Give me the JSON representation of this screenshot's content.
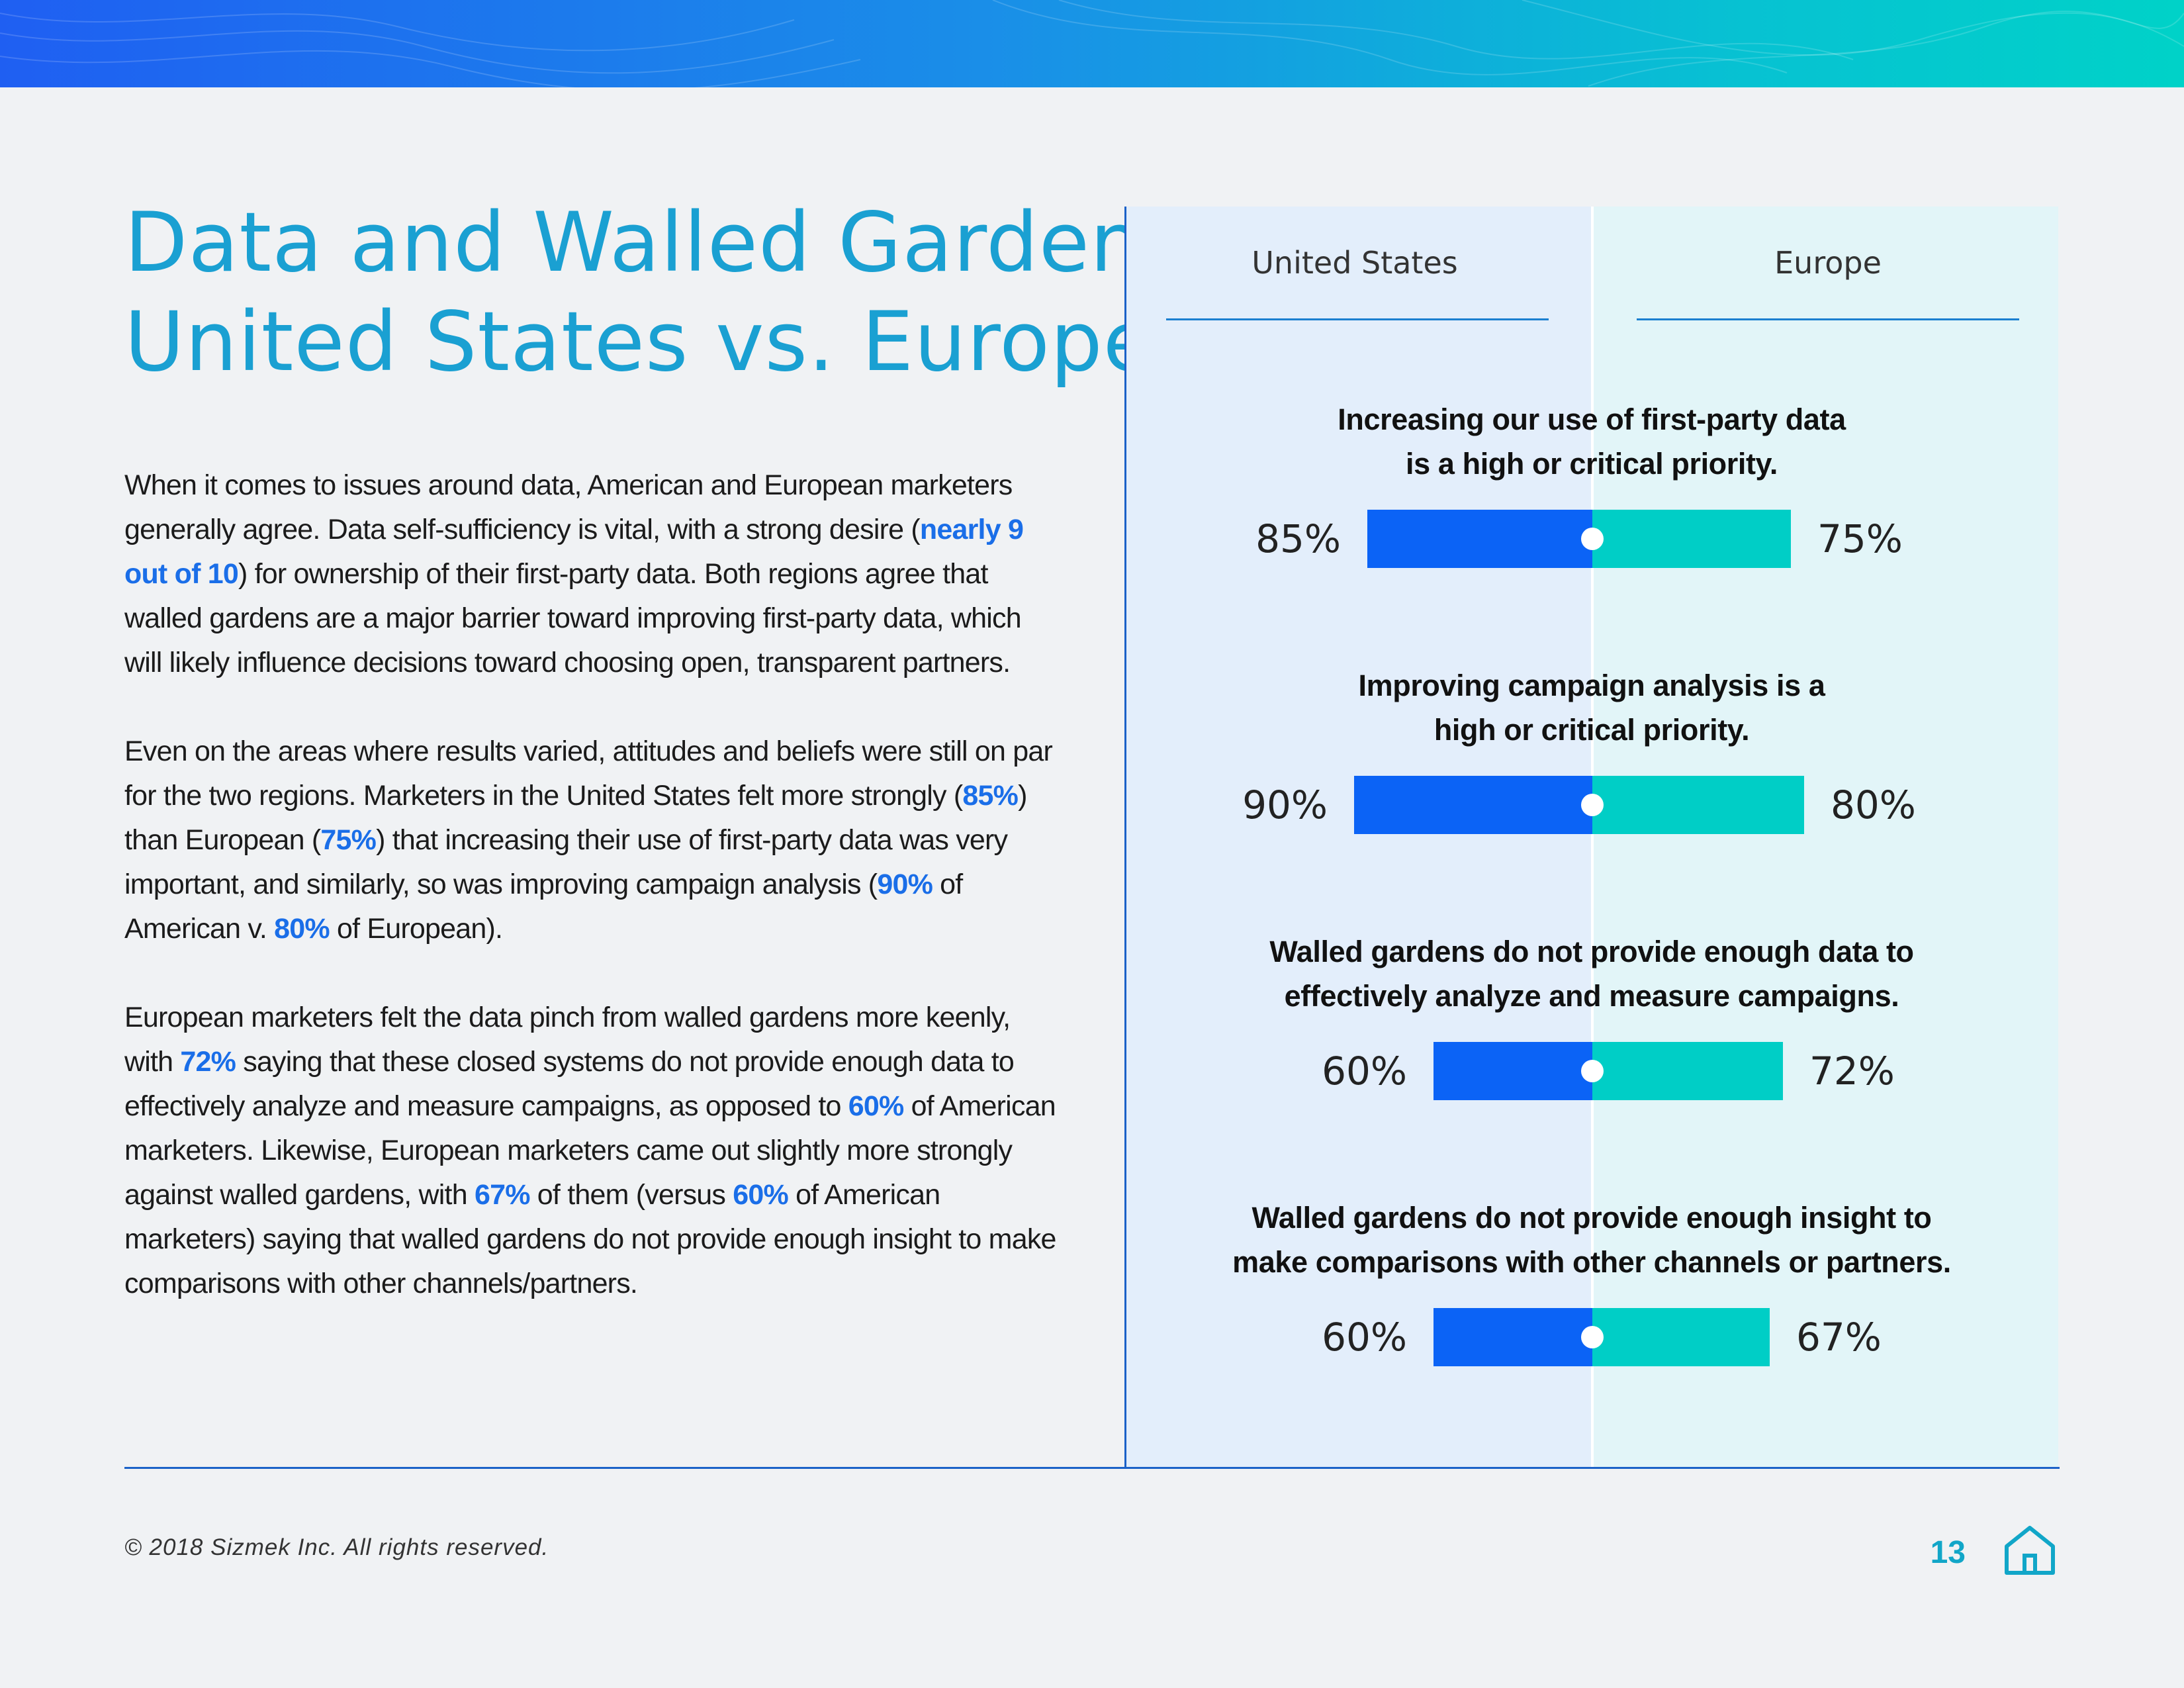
{
  "header": {
    "title_line1": "Data and Walled Gardens:",
    "title_line2": "United States vs. Europe"
  },
  "body": {
    "p1": [
      {
        "text": "When it comes to issues around data, American and European marketers generally agree. Data self-sufficiency is vital, with a strong desire ("
      },
      {
        "text": "nearly 9 out of 10",
        "highlight": true
      },
      {
        "text": ") for ownership of their first-party data. Both regions agree that walled gardens are a major barrier toward improving first-party data, which will likely influence decisions toward choosing open, transparent partners."
      }
    ],
    "p2": [
      {
        "text": "Even on the areas where results varied, attitudes and beliefs were still on par for the two regions. Marketers in the United States felt more strongly ("
      },
      {
        "text": "85%",
        "highlight": true
      },
      {
        "text": ") than European ("
      },
      {
        "text": "75%",
        "highlight": true
      },
      {
        "text": ") that increasing their use of first-party data was very important, and similarly, so was improving campaign analysis ("
      },
      {
        "text": "90%",
        "highlight": true
      },
      {
        "text": " of American v. "
      },
      {
        "text": "80%",
        "highlight": true
      },
      {
        "text": " of European)."
      }
    ],
    "p3": [
      {
        "text": "European marketers felt the data pinch from walled gardens more keenly, with "
      },
      {
        "text": "72%",
        "highlight": true
      },
      {
        "text": " saying that these closed systems do not provide enough data to effectively analyze and measure campaigns, as opposed to "
      },
      {
        "text": "60%",
        "highlight": true
      },
      {
        "text": " of American marketers. Likewise, European marketers came out slightly more strongly against walled gardens, with "
      },
      {
        "text": "67%",
        "highlight": true
      },
      {
        "text": " of them (versus "
      },
      {
        "text": "60%",
        "highlight": true
      },
      {
        "text": " of American marketers) saying that walled gardens do not provide enough insight to make comparisons with other channels/partners."
      }
    ]
  },
  "chart_data": {
    "type": "bar",
    "title": "",
    "series": [
      {
        "name": "United States",
        "values": [
          85,
          90,
          60,
          60
        ]
      },
      {
        "name": "Europe",
        "values": [
          75,
          80,
          72,
          67
        ]
      }
    ],
    "categories": [
      "Increasing our use of first-party data is a high or critical priority.",
      "Improving campaign analysis is a high or critical priority.",
      "Walled gardens do not provide enough data to effectively analyze and measure campaigns.",
      "Walled gardens do not provide enough insight to make comparisons with other channels or partners."
    ],
    "category_lines": [
      [
        "Increasing our use of first-party data",
        "is a high or critical priority."
      ],
      [
        "Improving campaign analysis is a",
        "high or critical priority."
      ],
      [
        "Walled gardens do not provide enough data to",
        "effectively analyze and measure campaigns."
      ],
      [
        "Walled gardens do not provide enough insight to",
        "make comparisons with other channels or partners."
      ]
    ],
    "value_labels": {
      "United States": [
        "85%",
        "90%",
        "60%",
        "60%"
      ],
      "Europe": [
        "75%",
        "80%",
        "72%",
        "67%"
      ]
    },
    "unit": "%",
    "colors": {
      "United States": "#0b63f6",
      "Europe": "#00cec6"
    }
  },
  "footer": {
    "copyright": "© 2018 Sizmek Inc. All rights reserved.",
    "page_number": "13"
  },
  "icons": {
    "home": "home-icon"
  }
}
